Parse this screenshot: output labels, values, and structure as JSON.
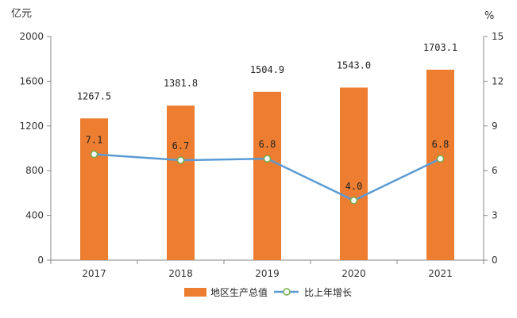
{
  "chart_data": {
    "type": "bar",
    "categories": [
      "2017",
      "2018",
      "2019",
      "2020",
      "2021"
    ],
    "series": [
      {
        "name": "地区生产总值",
        "type": "bar",
        "axis": "left",
        "values": [
          1267.5,
          1381.8,
          1504.9,
          1543.0,
          1703.1
        ],
        "labels": [
          "1267.5",
          "1381.8",
          "1504.9",
          "1543.0",
          "1703.1"
        ],
        "color": "#ED7D31"
      },
      {
        "name": "比上年增长",
        "type": "line",
        "axis": "right",
        "values": [
          7.1,
          6.7,
          6.8,
          4.0,
          6.8
        ],
        "labels": [
          "7.1",
          "6.7",
          "6.8",
          "4.0",
          "6.8"
        ],
        "color": "#5B9BD5"
      }
    ],
    "y_left": {
      "unit": "亿元",
      "ylim": [
        0,
        2000
      ],
      "ticks": [
        0,
        400,
        800,
        1200,
        1600,
        2000
      ],
      "tick_labels": [
        "0",
        "400",
        "800",
        "1200",
        "1600",
        "2000"
      ]
    },
    "y_right": {
      "unit": "%",
      "ylim": [
        0,
        15
      ],
      "ticks": [
        0,
        3,
        6,
        9,
        12,
        15
      ],
      "tick_labels": [
        "0",
        "3",
        "6",
        "9",
        "12",
        "15"
      ]
    },
    "grid": false,
    "legend": "bottom-center"
  }
}
